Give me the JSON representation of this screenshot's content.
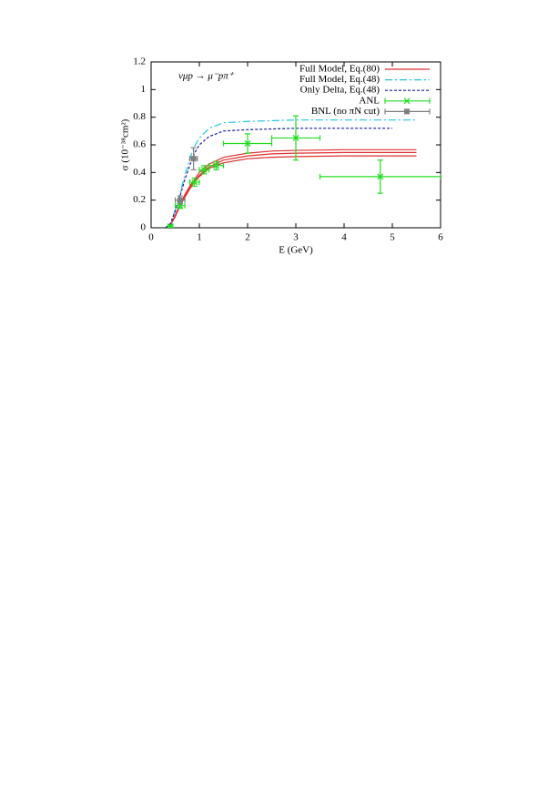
{
  "chart_data": {
    "type": "line",
    "annotation": "νμp → μ⁻pπ⁺",
    "xlabel": "E (GeV)",
    "ylabel": "σ (10⁻³⁸cm²)",
    "xlim": [
      0,
      6
    ],
    "ylim": [
      0,
      1.2
    ],
    "xticks": [
      0,
      1,
      2,
      3,
      4,
      5,
      6
    ],
    "yticks": [
      0,
      0.2,
      0.4,
      0.6,
      0.8,
      1,
      1.2
    ],
    "legend": "top-right",
    "series": [
      {
        "name": "Full Model, Eq.(80)",
        "color": "#e03030",
        "dash": "none",
        "x": [
          0.3,
          0.4,
          0.5,
          0.6,
          0.7,
          0.8,
          0.9,
          1.0,
          1.2,
          1.5,
          2,
          2.5,
          3,
          4,
          5,
          5.5
        ],
        "values": [
          0,
          0.02,
          0.09,
          0.17,
          0.24,
          0.3,
          0.35,
          0.4,
          0.46,
          0.51,
          0.54,
          0.555,
          0.56,
          0.565,
          0.565,
          0.565
        ]
      },
      {
        "color": "#e03030",
        "dash": "none",
        "x": [
          0.3,
          0.4,
          0.5,
          0.6,
          0.7,
          0.8,
          0.9,
          1.0,
          1.2,
          1.5,
          2,
          2.5,
          3,
          4,
          5,
          5.5
        ],
        "values": [
          0,
          0.02,
          0.09,
          0.17,
          0.23,
          0.29,
          0.34,
          0.38,
          0.44,
          0.49,
          0.52,
          0.535,
          0.54,
          0.545,
          0.545,
          0.545
        ]
      },
      {
        "color": "#e03030",
        "dash": "none",
        "x": [
          0.3,
          0.4,
          0.5,
          0.6,
          0.7,
          0.8,
          0.9,
          1.0,
          1.2,
          1.5,
          2,
          2.5,
          3,
          4,
          5,
          5.5
        ],
        "values": [
          0,
          0.02,
          0.08,
          0.16,
          0.22,
          0.28,
          0.33,
          0.37,
          0.43,
          0.47,
          0.5,
          0.51,
          0.515,
          0.52,
          0.52,
          0.52
        ]
      },
      {
        "name": "Full Model, Eq.(48)",
        "color": "#20c8e0",
        "dash": "8 3 2 3",
        "x": [
          0.3,
          0.4,
          0.5,
          0.6,
          0.7,
          0.8,
          0.9,
          1.0,
          1.2,
          1.5,
          2,
          2.5,
          3,
          4,
          5,
          5.5
        ],
        "values": [
          0,
          0.03,
          0.13,
          0.25,
          0.38,
          0.5,
          0.59,
          0.65,
          0.72,
          0.76,
          0.77,
          0.775,
          0.78,
          0.78,
          0.78,
          0.78
        ]
      },
      {
        "name": "Only Delta, Eq.(48)",
        "color": "#1c1ca8",
        "dash": "3 2",
        "x": [
          0.3,
          0.4,
          0.5,
          0.6,
          0.7,
          0.8,
          0.9,
          1.0,
          1.2,
          1.5,
          2,
          2.5,
          3,
          4,
          5
        ],
        "values": [
          0,
          0.03,
          0.12,
          0.23,
          0.35,
          0.45,
          0.54,
          0.6,
          0.66,
          0.7,
          0.71,
          0.715,
          0.72,
          0.72,
          0.72
        ]
      },
      {
        "name": "ANL",
        "type": "errorbar",
        "color": "#22dd22",
        "marker": "x",
        "x": [
          0.4,
          0.6,
          0.9,
          1.1,
          1.35,
          2.0,
          3.0,
          4.75
        ],
        "values": [
          0.01,
          0.16,
          0.33,
          0.42,
          0.45,
          0.61,
          0.65,
          0.37
        ],
        "xerr": [
          0.05,
          0.1,
          0.1,
          0.1,
          0.15,
          0.5,
          0.5,
          1.25
        ],
        "yerr": [
          0.01,
          0.02,
          0.03,
          0.03,
          0.03,
          0.07,
          0.16,
          0.12
        ]
      },
      {
        "name": "BNL (no πN cut)",
        "type": "errorbar",
        "color": "#808080",
        "marker": "square",
        "x": [
          0.6,
          0.88
        ],
        "values": [
          0.2,
          0.5
        ],
        "xerr": [
          0.1,
          0.08
        ],
        "yerr": [
          0.03,
          0.08
        ]
      }
    ]
  }
}
